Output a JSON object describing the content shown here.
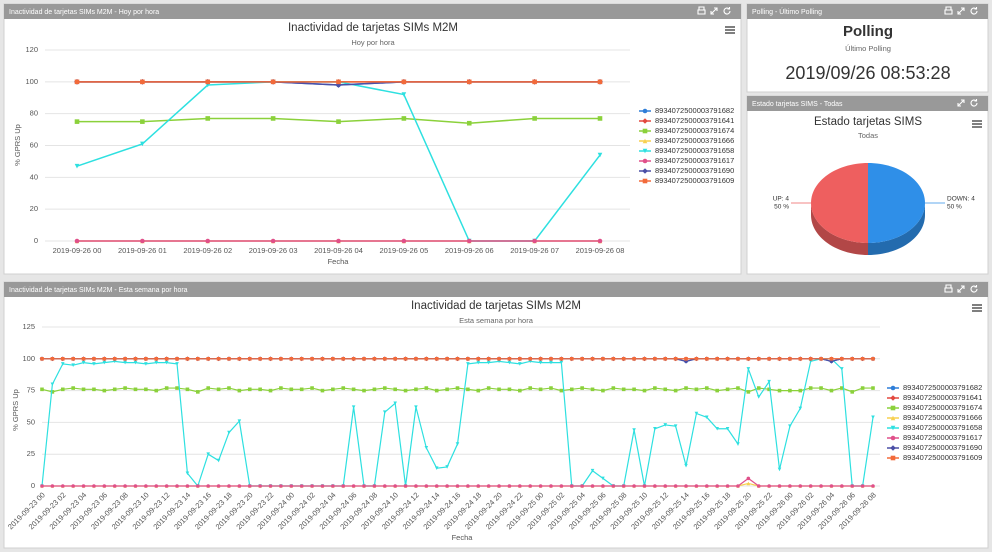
{
  "panels": [
    {
      "title": "Inactividad de tarjetas SIMs M2M - Hoy por hora"
    },
    {
      "title": "Polling - Último Polling"
    },
    {
      "title": "Estado tarjetas SIMS - Todas"
    },
    {
      "title": "Inactividad de tarjetas SIMs M2M - Esta semana por hora"
    }
  ],
  "polling": {
    "title": "Polling",
    "subtitle": "Último Polling",
    "value": "2019/09/26 08:53:28"
  },
  "chart_data": [
    {
      "type": "line",
      "title": "Inactividad de tarjetas SIMs M2M",
      "subtitle": "Hoy por hora",
      "x_label": "Fecha",
      "y_label": "% GPRS Up",
      "grid": true,
      "legend": "right",
      "categories": [
        "2019-09-26 00",
        "2019-09-26 01",
        "2019-09-26 02",
        "2019-09-26 03",
        "2019-09-26 04",
        "2019-09-26 05",
        "2019-09-26 06",
        "2019-09-26 07",
        "2019-09-26 08"
      ],
      "ylim": [
        0,
        120
      ],
      "yticks": [
        0,
        20,
        40,
        60,
        80,
        100,
        120
      ],
      "series": [
        {
          "name": "8934072500003791682",
          "color": "#2f7ed8",
          "values": [
            100,
            100,
            100,
            100,
            98,
            100,
            100,
            100,
            100
          ]
        },
        {
          "name": "8934072500003791641",
          "color": "#e2493f",
          "values": [
            100,
            100,
            100,
            100,
            100,
            100,
            100,
            100,
            100
          ]
        },
        {
          "name": "8934072500003791674",
          "color": "#8bd13b",
          "values": [
            75,
            75,
            77,
            77,
            75,
            77,
            74,
            77,
            77
          ]
        },
        {
          "name": "8934072500003791666",
          "color": "#f7d04f",
          "values": [
            0,
            0,
            0,
            0,
            0,
            0,
            0,
            0,
            0
          ]
        },
        {
          "name": "8934072500003791658",
          "color": "#2ee0e0",
          "values": [
            47,
            61,
            98,
            100,
            100,
            92,
            0,
            0,
            54
          ]
        },
        {
          "name": "8934072500003791617",
          "color": "#e0508a",
          "values": [
            0,
            0,
            0,
            0,
            0,
            0,
            0,
            0,
            0
          ]
        },
        {
          "name": "8934072500003791690",
          "color": "#4b4fa6",
          "values": [
            100,
            100,
            100,
            100,
            98,
            100,
            100,
            100,
            100
          ]
        },
        {
          "name": "8934072500003791609",
          "color": "#f26a3a",
          "values": [
            100,
            100,
            100,
            100,
            100,
            100,
            100,
            100,
            100
          ]
        }
      ]
    },
    {
      "type": "pie",
      "title": "Estado tarjetas SIMS",
      "subtitle": "Todas",
      "categories": [
        "UP",
        "DOWN"
      ],
      "values": [
        4,
        4
      ],
      "value_labels": [
        "UP: 4",
        "DOWN: 4"
      ],
      "percent_labels": [
        "50 %",
        "50 %"
      ],
      "colors": [
        "#ee5f5f",
        "#2f8fe8"
      ]
    },
    {
      "type": "line",
      "title": "Inactividad de tarjetas SIMs M2M",
      "subtitle": "Esta semana por hora",
      "x_label": "Fecha",
      "y_label": "% GPRS Up",
      "grid": true,
      "legend": "right",
      "categories": [
        "2019-09-23 00",
        null,
        "2019-09-23 02",
        null,
        "2019-09-23 04",
        null,
        "2019-09-23 06",
        null,
        "2019-09-23 08",
        null,
        "2019-09-23 10",
        null,
        "2019-09-23 12",
        null,
        "2019-09-23 14",
        null,
        "2019-09-23 16",
        null,
        "2019-09-23 18",
        null,
        "2019-09-23 20",
        null,
        "2019-09-23 22",
        null,
        "2019-09-24 00",
        null,
        "2019-09-24 02",
        null,
        "2019-09-24 04",
        null,
        "2019-09-24 06",
        null,
        "2019-09-24 08",
        null,
        "2019-09-24 10",
        null,
        "2019-09-24 12",
        null,
        "2019-09-24 14",
        null,
        "2019-09-24 16",
        null,
        "2019-09-24 18",
        null,
        "2019-09-24 20",
        null,
        "2019-09-24 22",
        null,
        "2019-09-25 00",
        null,
        "2019-09-25 02",
        null,
        "2019-09-25 04",
        null,
        "2019-09-25 06",
        null,
        "2019-09-25 08",
        null,
        "2019-09-25 10",
        null,
        "2019-09-25 12",
        null,
        "2019-09-25 14",
        null,
        "2019-09-25 16",
        null,
        "2019-09-25 18",
        null,
        "2019-09-25 20",
        null,
        "2019-09-25 22",
        null,
        "2019-09-26 00",
        null,
        "2019-09-26 02",
        null,
        "2019-09-26 04",
        null,
        "2019-09-26 06",
        null,
        "2019-09-26 08"
      ],
      "ylim": [
        0,
        125
      ],
      "yticks": [
        0,
        25,
        50,
        75,
        100,
        125
      ],
      "series": [
        {
          "name": "8934072500003791682",
          "color": "#2f7ed8",
          "values": [
            100,
            100,
            100,
            100,
            100,
            100,
            100,
            100,
            100,
            100,
            100,
            100,
            100,
            100,
            100,
            100,
            100,
            100,
            100,
            100,
            100,
            100,
            100,
            100,
            100,
            100,
            100,
            100,
            100,
            100,
            100,
            100,
            100,
            100,
            100,
            100,
            100,
            100,
            100,
            100,
            100,
            100,
            100,
            100,
            100,
            100,
            100,
            100,
            100,
            100,
            100,
            100,
            100,
            100,
            100,
            100,
            100,
            100,
            100,
            100,
            100,
            100,
            98,
            100,
            100,
            100,
            100,
            100,
            100,
            100,
            100,
            100,
            100,
            100,
            100,
            100,
            98,
            100,
            100,
            100,
            100
          ]
        },
        {
          "name": "8934072500003791641",
          "color": "#e2493f",
          "values": [
            100,
            100,
            100,
            100,
            100,
            100,
            100,
            100,
            100,
            100,
            100,
            100,
            100,
            100,
            100,
            100,
            100,
            100,
            100,
            100,
            100,
            100,
            100,
            100,
            100,
            100,
            100,
            100,
            100,
            100,
            100,
            100,
            100,
            100,
            100,
            100,
            100,
            100,
            100,
            100,
            100,
            100,
            100,
            100,
            100,
            100,
            100,
            100,
            100,
            100,
            100,
            100,
            100,
            100,
            100,
            100,
            100,
            100,
            100,
            100,
            100,
            100,
            100,
            100,
            100,
            100,
            100,
            100,
            100,
            100,
            100,
            100,
            100,
            100,
            100,
            100,
            100,
            100,
            100,
            100,
            100
          ]
        },
        {
          "name": "8934072500003791674",
          "color": "#8bd13b",
          "values": [
            76,
            74,
            76,
            77,
            76,
            76,
            75,
            76,
            77,
            76,
            76,
            75,
            77,
            77,
            76,
            74,
            77,
            76,
            77,
            75,
            76,
            76,
            75,
            77,
            76,
            76,
            77,
            75,
            76,
            77,
            76,
            75,
            76,
            77,
            76,
            75,
            76,
            77,
            75,
            76,
            77,
            76,
            75,
            77,
            76,
            76,
            75,
            77,
            76,
            77,
            75,
            76,
            77,
            76,
            75,
            77,
            76,
            76,
            75,
            77,
            76,
            75,
            77,
            76,
            77,
            75,
            76,
            77,
            74,
            77,
            76,
            75,
            75,
            75,
            77,
            77,
            75,
            77,
            74,
            77,
            77
          ]
        },
        {
          "name": "8934072500003791666",
          "color": "#f7d04f",
          "values": [
            0,
            0,
            0,
            0,
            0,
            0,
            0,
            0,
            0,
            0,
            0,
            0,
            0,
            0,
            0,
            0,
            0,
            0,
            0,
            0,
            0,
            0,
            0,
            0,
            0,
            0,
            0,
            0,
            0,
            0,
            0,
            0,
            0,
            0,
            0,
            0,
            0,
            0,
            0,
            0,
            0,
            0,
            0,
            0,
            0,
            0,
            0,
            0,
            0,
            0,
            0,
            0,
            0,
            0,
            0,
            0,
            0,
            0,
            0,
            0,
            0,
            0,
            0,
            0,
            0,
            0,
            0,
            0,
            2,
            0,
            0,
            0,
            0,
            0,
            0,
            0,
            0,
            0,
            0,
            0,
            0
          ]
        },
        {
          "name": "8934072500003791658",
          "color": "#2ee0e0",
          "values": [
            0,
            80,
            96,
            95,
            97,
            96,
            97,
            98,
            97,
            97,
            96,
            97,
            97,
            96,
            10,
            0,
            25,
            20,
            42,
            51,
            0,
            0,
            0,
            0,
            0,
            0,
            0,
            0,
            0,
            0,
            62,
            0,
            0,
            58,
            65,
            0,
            62,
            30,
            14,
            15,
            33,
            96,
            97,
            97,
            98,
            97,
            96,
            98,
            97,
            97,
            97,
            0,
            0,
            12,
            6,
            0,
            0,
            44,
            0,
            45,
            48,
            47,
            16,
            57,
            54,
            45,
            45,
            33,
            92,
            70,
            82,
            13,
            47,
            61,
            98,
            100,
            100,
            92,
            0,
            0,
            54
          ]
        },
        {
          "name": "8934072500003791617",
          "color": "#e0508a",
          "values": [
            0,
            0,
            0,
            0,
            0,
            0,
            0,
            0,
            0,
            0,
            0,
            0,
            0,
            0,
            0,
            0,
            0,
            0,
            0,
            0,
            0,
            0,
            0,
            0,
            0,
            0,
            0,
            0,
            0,
            0,
            0,
            0,
            0,
            0,
            0,
            0,
            0,
            0,
            0,
            0,
            0,
            0,
            0,
            0,
            0,
            0,
            0,
            0,
            0,
            0,
            0,
            0,
            0,
            0,
            0,
            0,
            0,
            0,
            0,
            0,
            0,
            0,
            0,
            0,
            0,
            0,
            0,
            0,
            6,
            0,
            0,
            0,
            0,
            0,
            0,
            0,
            0,
            0,
            0,
            0,
            0
          ]
        },
        {
          "name": "8934072500003791690",
          "color": "#4b4fa6",
          "values": [
            100,
            100,
            100,
            100,
            100,
            100,
            100,
            100,
            100,
            100,
            100,
            100,
            100,
            100,
            100,
            100,
            100,
            100,
            100,
            100,
            100,
            100,
            100,
            100,
            100,
            100,
            100,
            100,
            100,
            100,
            100,
            100,
            100,
            100,
            100,
            100,
            100,
            100,
            100,
            100,
            100,
            100,
            100,
            100,
            100,
            100,
            100,
            100,
            100,
            100,
            100,
            100,
            100,
            100,
            100,
            100,
            100,
            100,
            100,
            100,
            100,
            100,
            98,
            100,
            100,
            100,
            100,
            100,
            100,
            100,
            100,
            100,
            100,
            100,
            100,
            100,
            98,
            100,
            100,
            100,
            100
          ]
        },
        {
          "name": "8934072500003791609",
          "color": "#f26a3a",
          "values": [
            100,
            100,
            100,
            100,
            100,
            100,
            100,
            100,
            100,
            100,
            100,
            100,
            100,
            100,
            100,
            100,
            100,
            100,
            100,
            100,
            100,
            100,
            100,
            100,
            100,
            100,
            100,
            100,
            100,
            100,
            100,
            100,
            100,
            100,
            100,
            100,
            100,
            100,
            100,
            100,
            100,
            100,
            100,
            100,
            100,
            100,
            100,
            100,
            100,
            100,
            100,
            100,
            100,
            100,
            100,
            100,
            100,
            100,
            100,
            100,
            100,
            100,
            100,
            100,
            100,
            100,
            100,
            100,
            100,
            100,
            100,
            100,
            100,
            100,
            100,
            100,
            100,
            100,
            100,
            100,
            100
          ]
        }
      ]
    }
  ]
}
